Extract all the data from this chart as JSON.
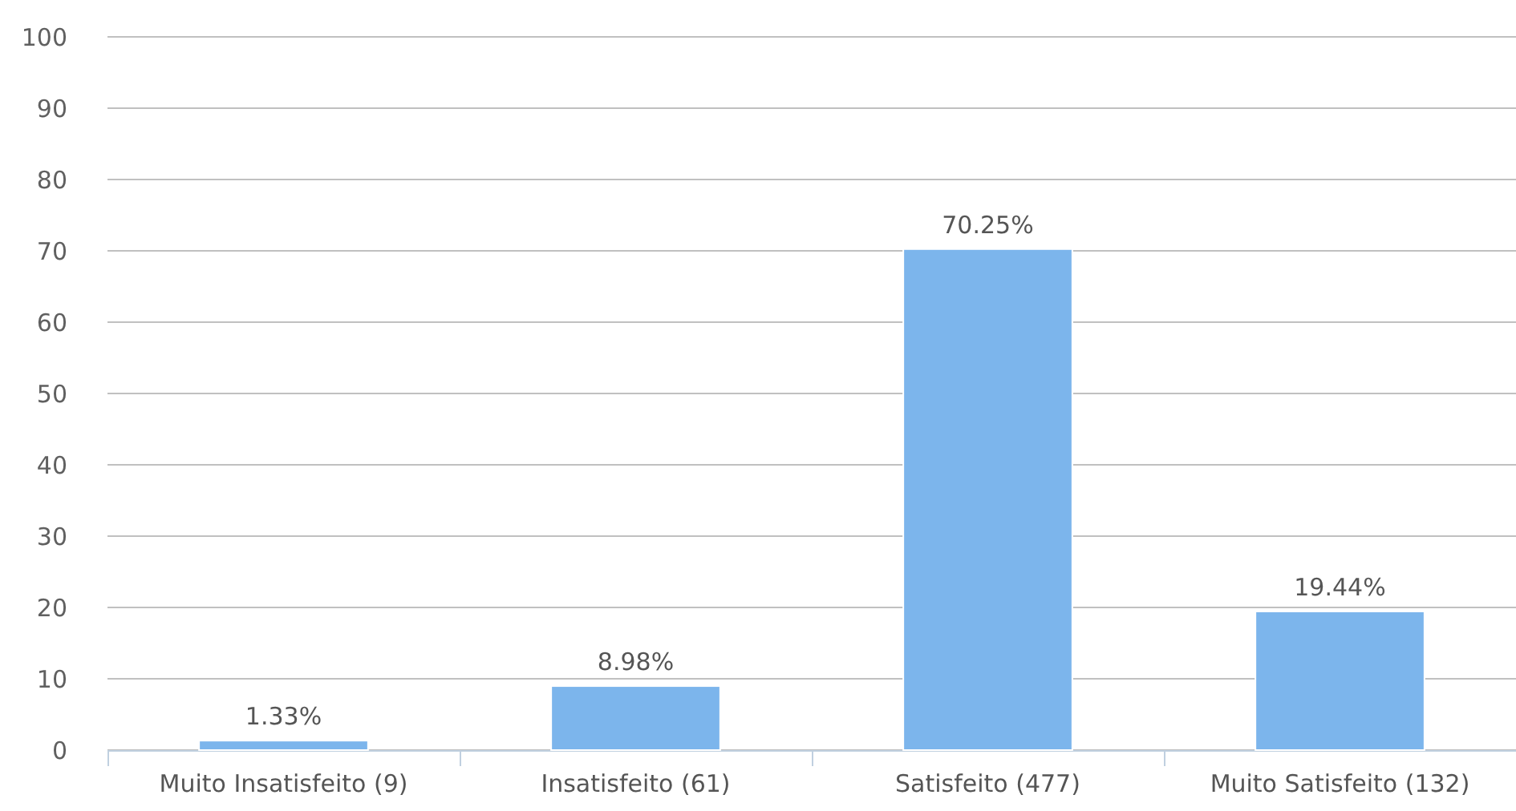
{
  "chart_data": {
    "type": "bar",
    "categories": [
      "Muito Insatisfeito (9)",
      "Insatisfeito (61)",
      "Satisfeito (477)",
      "Muito Satisfeito (132)"
    ],
    "values": [
      1.33,
      8.98,
      70.25,
      19.44
    ],
    "value_labels": [
      "1.33%",
      "8.98%",
      "70.25%",
      "19.44%"
    ],
    "color": "#7cb5ec",
    "ylim": [
      0,
      100
    ],
    "yticks": [
      0,
      10,
      20,
      30,
      40,
      50,
      60,
      70,
      80,
      90,
      100
    ],
    "grid": "y"
  }
}
